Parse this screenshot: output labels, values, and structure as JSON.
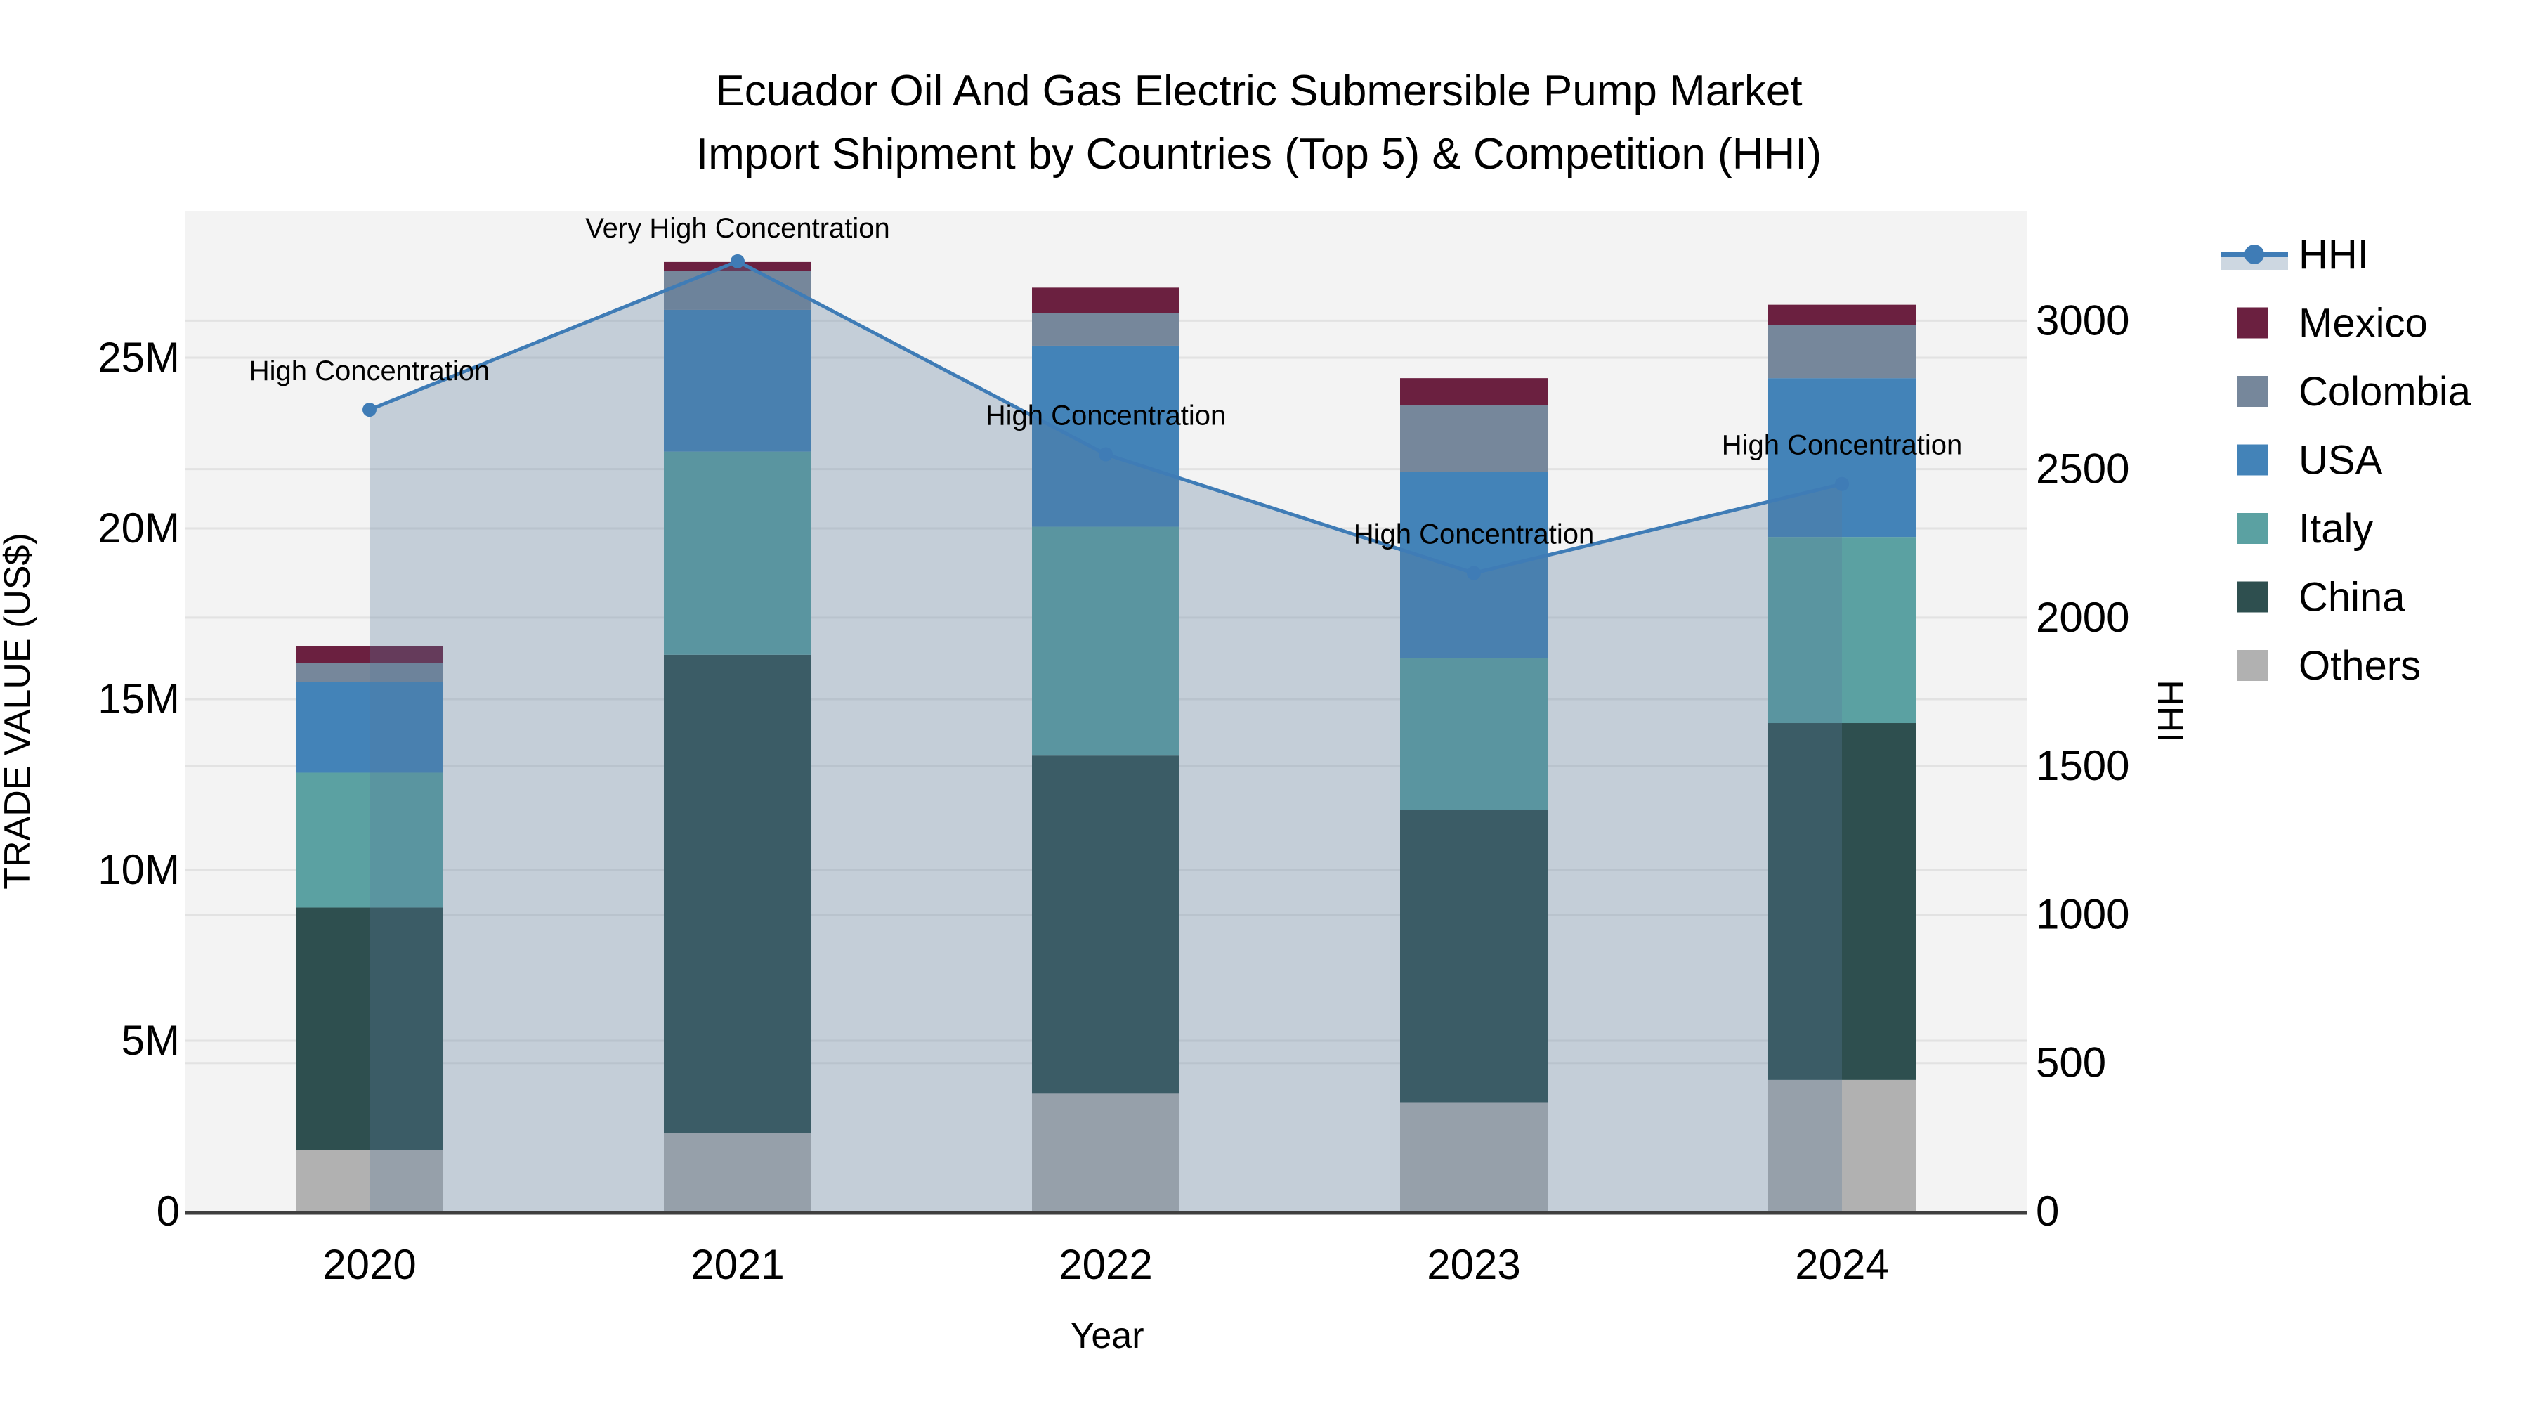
{
  "title": {
    "line1": "Ecuador Oil And Gas Electric Submersible Pump Market",
    "line2": "Import Shipment by Countries (Top 5) & Competition (HHI)"
  },
  "axes": {
    "x_title": "Year",
    "y_left_title": "TRADE VALUE (US$)",
    "y_right_title": "HHI"
  },
  "colors": {
    "hhi_line": "#3f7cb6",
    "area_fill": "#5b7a9b",
    "area_opacity": 0.3,
    "plot_bg": "#f3f3f3",
    "grid": "#e2e2e2",
    "axis_line": "#3f3f3f",
    "text": "#000000"
  },
  "legend": [
    {
      "label": "HHI",
      "type": "line",
      "color": "#3f7cb6"
    },
    {
      "label": "Mexico",
      "type": "square",
      "color": "#6b2040"
    },
    {
      "label": "Colombia",
      "type": "square",
      "color": "#76879b"
    },
    {
      "label": "USA",
      "type": "square",
      "color": "#4383b8"
    },
    {
      "label": "Italy",
      "type": "square",
      "color": "#5ba1a2"
    },
    {
      "label": "China",
      "type": "square",
      "color": "#2e4f4f"
    },
    {
      "label": "Others",
      "type": "square",
      "color": "#b1b1b1"
    }
  ],
  "chart_data": {
    "type": "bar",
    "stacked": true,
    "categories": [
      "2020",
      "2021",
      "2022",
      "2023",
      "2024"
    ],
    "unit": "USD millions (left axis), HHI index (right axis)",
    "series": [
      {
        "name": "Others",
        "color": "#b1b1b1",
        "values": [
          1.8,
          2.3,
          3.45,
          3.2,
          3.85
        ]
      },
      {
        "name": "China",
        "color": "#2e4f4f",
        "values": [
          7.1,
          14.0,
          9.9,
          8.55,
          10.45
        ]
      },
      {
        "name": "Italy",
        "color": "#5ba1a2",
        "values": [
          3.95,
          5.95,
          6.7,
          4.45,
          5.45
        ]
      },
      {
        "name": "USA",
        "color": "#4383b8",
        "values": [
          2.65,
          4.15,
          5.3,
          5.45,
          4.65
        ]
      },
      {
        "name": "Colombia",
        "color": "#76879b",
        "values": [
          0.55,
          1.15,
          0.95,
          1.95,
          1.55
        ]
      },
      {
        "name": "Mexico",
        "color": "#6b2040",
        "values": [
          0.5,
          0.25,
          0.75,
          0.8,
          0.6
        ]
      }
    ],
    "line_series": {
      "name": "HHI",
      "axis": "right",
      "color": "#3f7cb6",
      "values": [
        2700,
        3200,
        2550,
        2150,
        2450
      ],
      "area_fill": true
    },
    "annotations": [
      {
        "category": "2020",
        "label": "High Concentration"
      },
      {
        "category": "2021",
        "label": "Very High Concentration"
      },
      {
        "category": "2022",
        "label": "High Concentration"
      },
      {
        "category": "2023",
        "label": "High Concentration"
      },
      {
        "category": "2024",
        "label": "High Concentration"
      }
    ],
    "x": {
      "title": "Year"
    },
    "y_left": {
      "title": "TRADE VALUE (US$)",
      "ticks": [
        "0",
        "5M",
        "10M",
        "15M",
        "20M",
        "25M"
      ],
      "tick_values": [
        0,
        5,
        10,
        15,
        20,
        25
      ],
      "range": [
        0,
        29.3
      ]
    },
    "y_right": {
      "title": "HHI",
      "ticks": [
        "0",
        "500",
        "1000",
        "1500",
        "2000",
        "2500",
        "3000"
      ],
      "tick_values": [
        0,
        500,
        1000,
        1500,
        2000,
        2500,
        3000
      ],
      "range": [
        0,
        3370
      ]
    },
    "grid": true,
    "legend_position": "right"
  }
}
